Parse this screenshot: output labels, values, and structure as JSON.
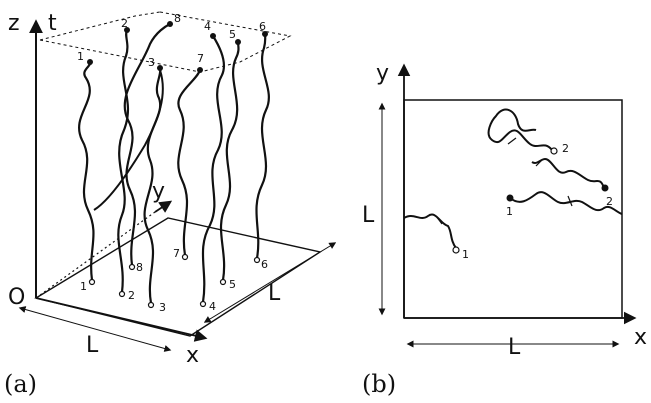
{
  "panel_a": {
    "caption": "(a)",
    "labels": {
      "z": "z",
      "t": "t",
      "origin": "O",
      "y": "y",
      "x": "x",
      "L_front": "L",
      "L_side": "L"
    },
    "bottom_numbers": [
      "1",
      "2",
      "3",
      "4",
      "5",
      "6",
      "7",
      "8"
    ],
    "top_numbers": [
      "1",
      "2",
      "3",
      "4",
      "5",
      "6",
      "7",
      "8"
    ]
  },
  "panel_b": {
    "caption": "(b)",
    "labels": {
      "y": "y",
      "x": "x",
      "L_left": "L",
      "L_bottom": "L"
    },
    "points": [
      "1",
      "2",
      "1",
      "2"
    ]
  }
}
